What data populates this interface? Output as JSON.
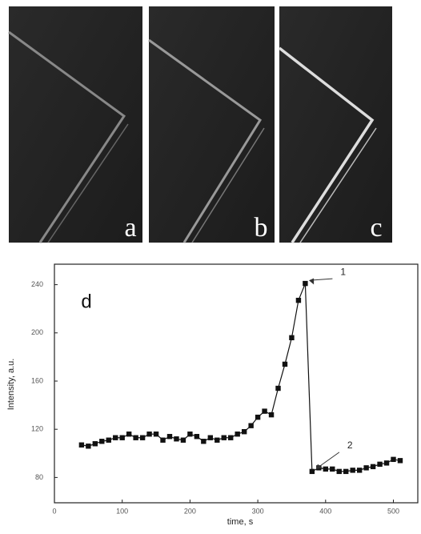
{
  "panels": [
    "a",
    "b",
    "c"
  ],
  "chart_data": {
    "type": "line",
    "label": "d",
    "x_label": "time, s",
    "y_label": "Intensity, a.u.",
    "x": [
      40,
      50,
      60,
      70,
      80,
      90,
      100,
      110,
      120,
      130,
      140,
      150,
      160,
      170,
      180,
      190,
      200,
      210,
      220,
      230,
      240,
      250,
      260,
      270,
      280,
      290,
      300,
      310,
      320,
      330,
      340,
      350,
      360,
      370,
      380,
      390,
      400,
      410,
      420,
      430,
      440,
      450,
      460,
      470,
      480,
      490,
      500,
      510
    ],
    "series": [
      {
        "color": "#111111",
        "values": [
          107,
          106,
          108,
          110,
          111,
          113,
          113,
          116,
          113,
          113,
          116,
          116,
          111,
          114,
          112,
          111,
          116,
          114,
          110,
          113,
          111,
          113,
          113,
          116,
          118,
          123,
          130,
          135,
          132,
          154,
          174,
          196,
          227,
          241,
          85,
          88,
          87,
          87,
          85,
          85,
          86,
          86,
          88,
          89,
          91,
          92,
          95,
          94
        ]
      }
    ],
    "annotations": [
      {
        "text": "1",
        "x": 370,
        "y": 241
      },
      {
        "text": "2",
        "x": 380,
        "y": 85
      }
    ],
    "xlim": [
      0,
      536
    ],
    "ylim": [
      59,
      257
    ],
    "xticks": [
      0,
      100,
      200,
      300,
      400,
      500
    ],
    "yticks": [
      80,
      120,
      160,
      200,
      240
    ]
  }
}
